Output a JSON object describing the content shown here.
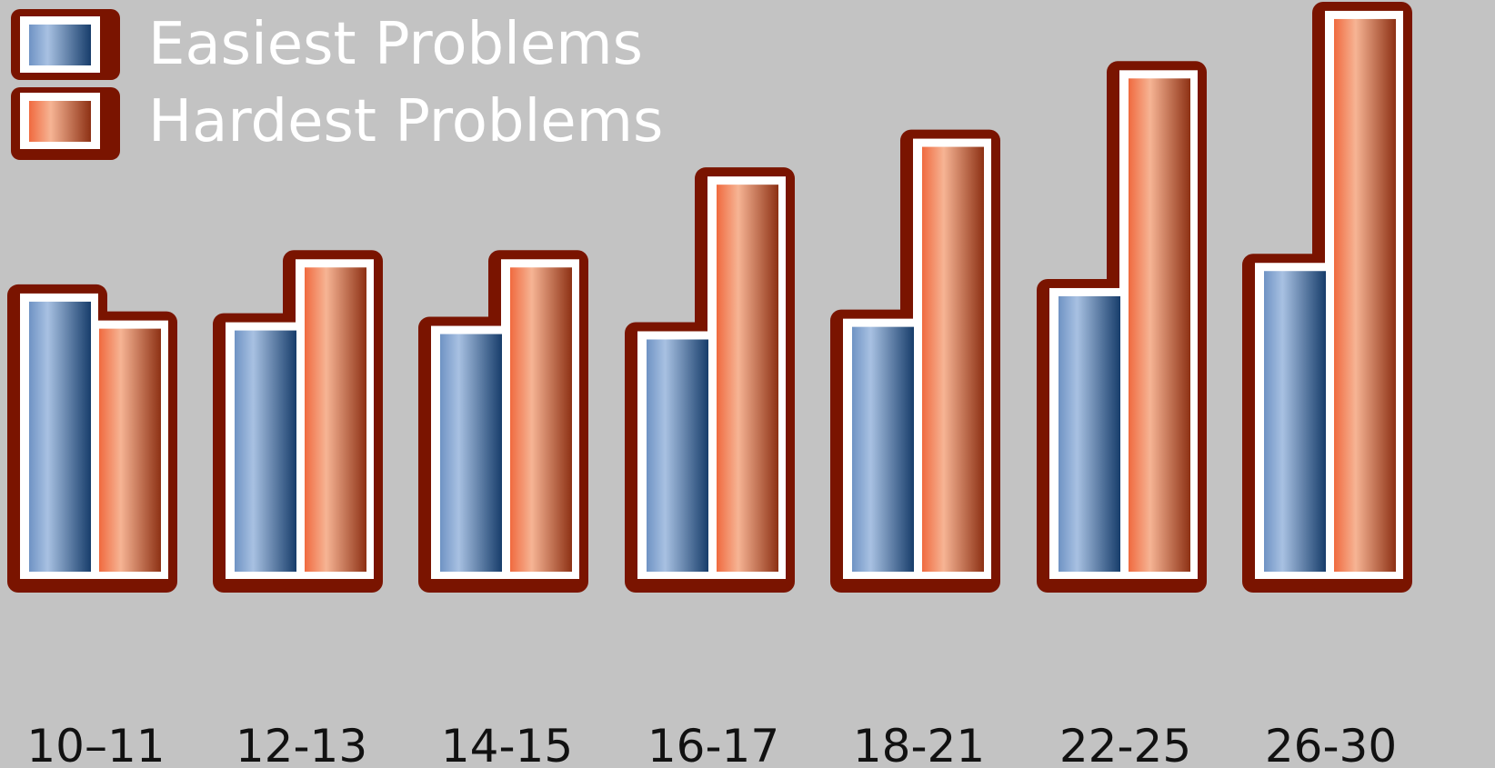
{
  "colors": {
    "background": "#c3c3c3",
    "outline": "#7a1400",
    "border": "#ffffff",
    "easiest": "#4e77a8",
    "hardest": "#e4724c",
    "legend_text": "#ffffff",
    "tick_text": "#111111"
  },
  "chart_data": {
    "type": "bar",
    "categories": [
      "10–11",
      "12-13",
      "14-15",
      "16-17",
      "18-21",
      "22-25",
      "26-30"
    ],
    "series": [
      {
        "name": "Easiest Problems",
        "values": [
          300,
          268,
          264,
          258,
          272,
          306,
          334
        ]
      },
      {
        "name": "Hardest Problems",
        "values": [
          270,
          338,
          338,
          430,
          472,
          548,
          614
        ]
      }
    ],
    "legend": "top-left",
    "grid": false,
    "ylim": [
      0,
      620
    ],
    "title": "",
    "xlabel": "",
    "ylabel": ""
  }
}
